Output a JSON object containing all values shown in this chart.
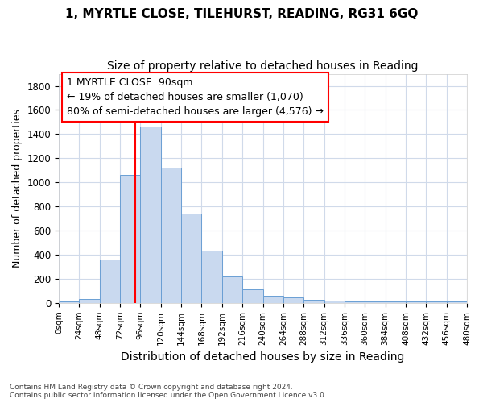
{
  "title1": "1, MYRTLE CLOSE, TILEHURST, READING, RG31 6GQ",
  "title2": "Size of property relative to detached houses in Reading",
  "xlabel": "Distribution of detached houses by size in Reading",
  "ylabel": "Number of detached properties",
  "bar_values": [
    15,
    30,
    360,
    1060,
    1460,
    1120,
    740,
    435,
    220,
    115,
    60,
    45,
    25,
    20,
    10,
    10,
    10,
    10,
    10,
    10
  ],
  "bin_edges": [
    0,
    24,
    48,
    72,
    96,
    120,
    144,
    168,
    192,
    216,
    240,
    264,
    288,
    312,
    336,
    360,
    384,
    408,
    432,
    456,
    480
  ],
  "bar_color": "#c9d9ef",
  "bar_edgecolor": "#6a9fd4",
  "red_line_x": 90,
  "annotation_line1": "1 MYRTLE CLOSE: 90sqm",
  "annotation_line2": "← 19% of detached houses are smaller (1,070)",
  "annotation_line3": "80% of semi-detached houses are larger (4,576) →",
  "ylim": [
    0,
    1900
  ],
  "yticks": [
    0,
    200,
    400,
    600,
    800,
    1000,
    1200,
    1400,
    1600,
    1800
  ],
  "footnote": "Contains HM Land Registry data © Crown copyright and database right 2024.\nContains public sector information licensed under the Open Government Licence v3.0.",
  "bg_color": "#ffffff",
  "grid_color": "#d0daea",
  "title1_fontsize": 11,
  "title2_fontsize": 10,
  "annotation_fontsize": 9
}
